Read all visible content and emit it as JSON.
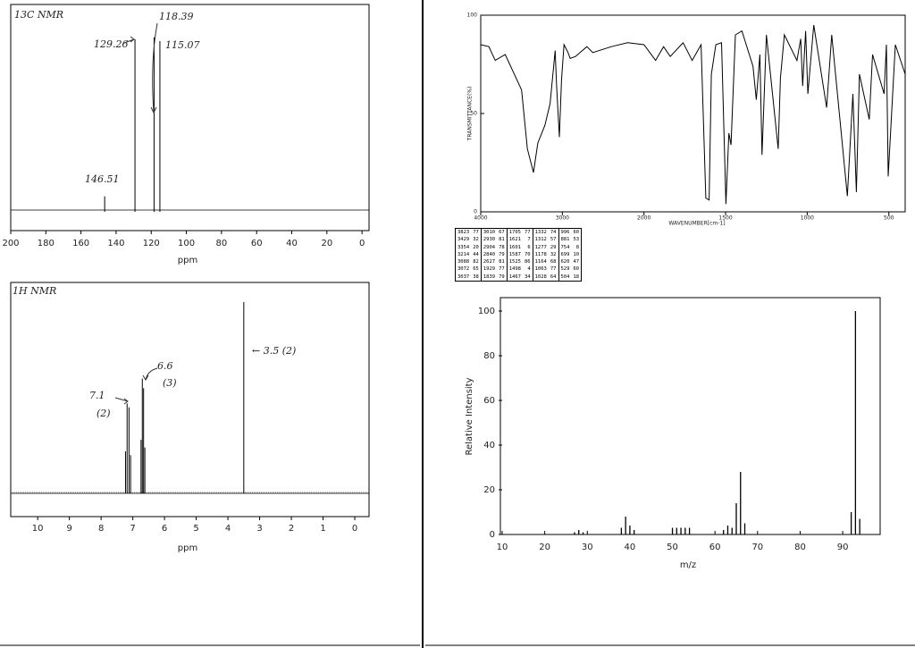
{
  "chart_data": [
    {
      "type": "stick",
      "title": "13C NMR",
      "x": [
        146.51,
        129.26,
        118.39,
        115.07
      ],
      "values": [
        8,
        89,
        90,
        88
      ],
      "xlim": [
        200,
        -4
      ],
      "xticks": [
        200,
        180,
        160,
        140,
        120,
        100,
        80,
        60,
        40,
        20,
        0
      ],
      "ylim": [
        0,
        100
      ],
      "xlabel": "ppm",
      "color": "#000000"
    },
    {
      "type": "stick",
      "title": "1H NMR",
      "x": [
        7.23,
        7.18,
        7.12,
        7.07,
        6.74,
        6.7,
        6.66,
        6.62,
        3.5
      ],
      "values": [
        22,
        47,
        45,
        20,
        28,
        60,
        55,
        24,
        100
      ],
      "xlim": [
        10.85,
        -0.45
      ],
      "xticks": [
        10,
        9,
        8,
        7,
        6,
        5,
        4,
        3,
        2,
        1,
        0
      ],
      "ylim": [
        0,
        100
      ],
      "xlabel": "ppm",
      "color": "#000000",
      "annotations": [
        "7.1",
        "(2)",
        "6.6",
        "(3)",
        "← 3.5 (2)"
      ]
    },
    {
      "type": "line",
      "x": [
        4000,
        3900,
        3823,
        3700,
        3500,
        3429,
        3354,
        3300,
        3214,
        3150,
        3088,
        3072,
        3037,
        3010,
        2980,
        2930,
        2904,
        2840,
        2700,
        2627,
        2400,
        2200,
        2000,
        1929,
        1880,
        1839,
        1760,
        1705,
        1650,
        1621,
        1601,
        1587,
        1560,
        1525,
        1498,
        1480,
        1467,
        1440,
        1400,
        1332,
        1312,
        1290,
        1277,
        1250,
        1178,
        1164,
        1140,
        1063,
        1040,
        1028,
        1010,
        996,
        960,
        881,
        850,
        754,
        720,
        699,
        680,
        620,
        600,
        529,
        515,
        504,
        460,
        400
      ],
      "values": [
        85,
        84,
        77,
        80,
        62,
        32,
        20,
        35,
        44,
        55,
        82,
        65,
        38,
        67,
        85,
        81,
        78,
        79,
        84,
        81,
        84,
        86,
        85,
        77,
        84,
        79,
        86,
        77,
        85,
        7,
        6,
        70,
        85,
        86,
        4,
        40,
        34,
        90,
        92,
        74,
        57,
        80,
        29,
        90,
        32,
        68,
        90,
        77,
        88,
        64,
        92,
        60,
        95,
        53,
        90,
        8,
        60,
        10,
        70,
        47,
        80,
        60,
        85,
        18,
        85,
        70
      ],
      "xlim": [
        4000,
        400
      ],
      "x_scale_change": 2000,
      "xticks": [
        4000,
        3000,
        2000,
        1500,
        1000,
        500
      ],
      "ylim": [
        0,
        100
      ],
      "yticks": [
        100,
        50,
        0
      ],
      "xlabel": "WAVENUMBER[cm-1]",
      "ylabel": "TRANSMITTANCE(%)",
      "color": "#000000"
    },
    {
      "type": "stick",
      "x": [
        27,
        28,
        29,
        38,
        39,
        40,
        41,
        50,
        51,
        52,
        53,
        54,
        62,
        63,
        64,
        65,
        66,
        67,
        92,
        93,
        94
      ],
      "values": [
        1,
        2,
        1,
        3,
        8,
        4,
        2,
        3,
        3,
        3,
        3,
        3,
        2,
        4,
        3,
        14,
        28,
        5,
        10,
        100,
        7
      ],
      "xlim": [
        10,
        98.8
      ],
      "xticks": [
        10,
        20,
        30,
        40,
        50,
        60,
        70,
        80,
        90
      ],
      "ylim": [
        0,
        106
      ],
      "yticks": [
        0,
        20,
        40,
        60,
        80,
        100
      ],
      "xlabel": "m/z",
      "ylabel": "Relative Intensity",
      "color": "#000000"
    }
  ],
  "ir_peak_table": {
    "rows": [
      [
        3823,
        77,
        3010,
        67,
        1705,
        77,
        1332,
        74,
        996,
        60
      ],
      [
        3429,
        32,
        2930,
        81,
        1621,
        7,
        1312,
        57,
        881,
        53
      ],
      [
        3354,
        20,
        2904,
        78,
        1601,
        6,
        1277,
        29,
        754,
        8
      ],
      [
        3214,
        44,
        2840,
        79,
        1587,
        70,
        1178,
        32,
        699,
        10
      ],
      [
        3088,
        82,
        2627,
        81,
        1525,
        86,
        1164,
        68,
        620,
        47
      ],
      [
        3072,
        65,
        1929,
        77,
        1498,
        4,
        1063,
        77,
        529,
        60
      ],
      [
        3037,
        38,
        1839,
        79,
        1467,
        34,
        1028,
        64,
        504,
        18
      ]
    ]
  }
}
